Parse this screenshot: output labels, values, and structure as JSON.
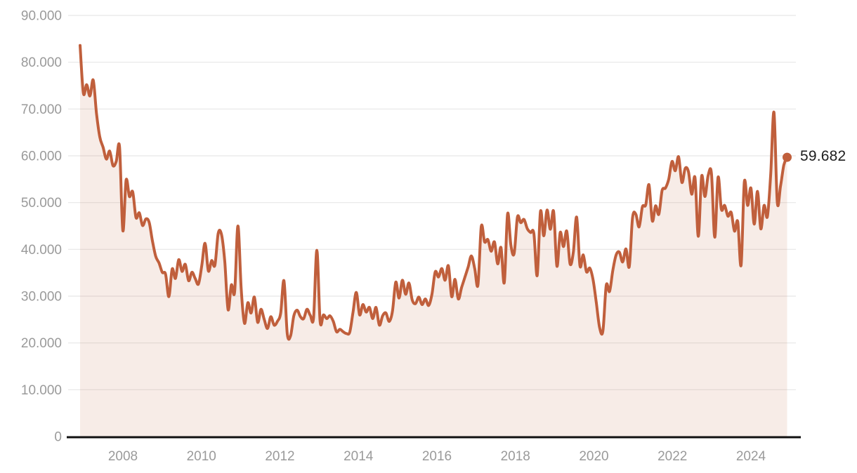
{
  "chart_data": {
    "type": "area",
    "title": "",
    "frequency": "monthly",
    "x_start": "2007-01",
    "x_end": "2024-12",
    "xlabel": "",
    "ylabel": "",
    "ylim": [
      0,
      90000
    ],
    "grid": "horizontal",
    "legend": "none",
    "y_axis": {
      "tick_labels": [
        "90.000",
        "80.000",
        "70.000",
        "60.000",
        "50.000",
        "40.000",
        "30.000",
        "20.000",
        "10.000",
        "0"
      ],
      "tick_values": [
        90000,
        80000,
        70000,
        60000,
        50000,
        40000,
        30000,
        20000,
        10000,
        0
      ]
    },
    "x_axis": {
      "tick_labels": [
        "2008",
        "2010",
        "2012",
        "2014",
        "2016",
        "2018",
        "2020",
        "2022",
        "2024"
      ],
      "tick_values": [
        2008,
        2010,
        2012,
        2014,
        2016,
        2018,
        2020,
        2022,
        2024
      ]
    },
    "series": [
      {
        "name": "value",
        "values": [
          83600,
          73400,
          75200,
          72800,
          76200,
          69000,
          64000,
          61800,
          59300,
          61000,
          57900,
          58800,
          61900,
          44000,
          54800,
          51300,
          52300,
          46800,
          47800,
          45100,
          46500,
          45800,
          41800,
          38500,
          37100,
          35100,
          34700,
          29900,
          35800,
          33800,
          37800,
          35300,
          36800,
          33300,
          35100,
          33800,
          32600,
          36500,
          41300,
          35400,
          37600,
          36600,
          43400,
          43200,
          37400,
          27100,
          32400,
          30900,
          45000,
          31500,
          24200,
          28600,
          26400,
          29800,
          24400,
          27200,
          25000,
          23100,
          25600,
          23800,
          24600,
          26400,
          33300,
          22000,
          21500,
          25800,
          27000,
          25600,
          25200,
          27200,
          25900,
          25400,
          39800,
          24600,
          26000,
          25200,
          25800,
          24600,
          22400,
          22900,
          22400,
          22000,
          22300,
          26600,
          30800,
          26000,
          28200,
          26600,
          27600,
          25200,
          27600,
          23800,
          25800,
          26400,
          24600,
          26800,
          33000,
          29600,
          33400,
          30400,
          32800,
          29200,
          28400,
          29800,
          28200,
          29400,
          28000,
          30400,
          35200,
          34100,
          35900,
          33400,
          36500,
          29900,
          33600,
          29400,
          31800,
          34000,
          36200,
          38600,
          35900,
          32400,
          44900,
          41600,
          42100,
          39600,
          41600,
          36900,
          40400,
          32900,
          47600,
          40900,
          39100,
          46900,
          45700,
          46400,
          44400,
          43600,
          43400,
          34400,
          48100,
          42900,
          48400,
          44300,
          48100,
          36400,
          43600,
          40600,
          43900,
          36900,
          39400,
          46900,
          36500,
          38800,
          35200,
          36000,
          33500,
          28500,
          23200,
          22600,
          32300,
          31000,
          35500,
          38800,
          39400,
          37300,
          40100,
          36300,
          46800,
          47500,
          44800,
          49100,
          49500,
          53800,
          46100,
          49300,
          47500,
          52600,
          53100,
          55000,
          58800,
          56800,
          59800,
          54300,
          57300,
          56600,
          51800,
          55300,
          42800,
          55600,
          51300,
          55800,
          56200,
          42600,
          55400,
          48600,
          49400,
          47100,
          47900,
          43900,
          45900,
          36600,
          54400,
          49400,
          53100,
          45400,
          52400,
          44400,
          49400,
          47000,
          55900,
          69300,
          50100,
          53500,
          58000,
          59682
        ]
      }
    ],
    "last_value": 59682,
    "last_value_label": "59.682",
    "colors": {
      "line": "#c05f3c",
      "fill_opacity": 0.12,
      "axis_label": "#9a9a9a",
      "axis_line": "#111111",
      "gridline": "#e7e7e7",
      "end_label_text": "#1d1d1d"
    }
  }
}
